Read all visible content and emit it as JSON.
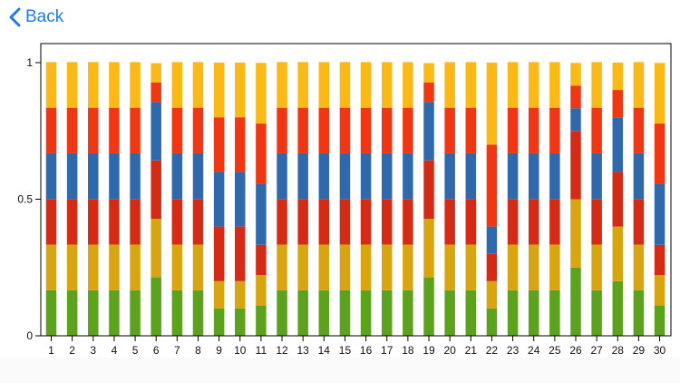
{
  "nav": {
    "back_label": "Back",
    "back_icon": "chevron-left-icon",
    "accent_color": "#1a7df3"
  },
  "chart_data": {
    "type": "bar",
    "stacked": true,
    "title": "",
    "xlabel": "",
    "ylabel": "",
    "ylim": [
      0,
      1
    ],
    "y_ticks": [
      {
        "value": 0,
        "label": "0"
      },
      {
        "value": 0.5,
        "label": "0.5"
      },
      {
        "value": 1,
        "label": "1"
      }
    ],
    "grid": false,
    "legend": "none",
    "categories": [
      "1",
      "2",
      "3",
      "4",
      "5",
      "6",
      "7",
      "8",
      "9",
      "10",
      "11",
      "12",
      "13",
      "14",
      "15",
      "16",
      "17",
      "18",
      "19",
      "20",
      "21",
      "22",
      "23",
      "24",
      "25",
      "26",
      "27",
      "28",
      "29",
      "30"
    ],
    "series": [
      {
        "color": "#5ba31a",
        "values": [
          0.167,
          0.167,
          0.167,
          0.167,
          0.167,
          0.214,
          0.167,
          0.167,
          0.1,
          0.1,
          0.111,
          0.167,
          0.167,
          0.167,
          0.167,
          0.167,
          0.167,
          0.167,
          0.214,
          0.167,
          0.167,
          0.1,
          0.167,
          0.167,
          0.167,
          0.25,
          0.167,
          0.2,
          0.167,
          0.111
        ]
      },
      {
        "color": "#d9a50f",
        "values": [
          0.167,
          0.167,
          0.167,
          0.167,
          0.167,
          0.214,
          0.167,
          0.167,
          0.1,
          0.1,
          0.111,
          0.167,
          0.167,
          0.167,
          0.167,
          0.167,
          0.167,
          0.167,
          0.214,
          0.167,
          0.167,
          0.1,
          0.167,
          0.167,
          0.167,
          0.25,
          0.167,
          0.2,
          0.167,
          0.111
        ]
      },
      {
        "color": "#d62a14",
        "values": [
          0.167,
          0.167,
          0.167,
          0.167,
          0.167,
          0.214,
          0.167,
          0.167,
          0.2,
          0.2,
          0.111,
          0.167,
          0.167,
          0.167,
          0.167,
          0.167,
          0.167,
          0.167,
          0.214,
          0.167,
          0.167,
          0.1,
          0.167,
          0.167,
          0.167,
          0.25,
          0.167,
          0.2,
          0.167,
          0.111
        ]
      },
      {
        "color": "#2f69ad",
        "values": [
          0.167,
          0.167,
          0.167,
          0.167,
          0.167,
          0.214,
          0.167,
          0.167,
          0.2,
          0.2,
          0.222,
          0.167,
          0.167,
          0.167,
          0.167,
          0.167,
          0.167,
          0.167,
          0.214,
          0.167,
          0.167,
          0.1,
          0.167,
          0.167,
          0.167,
          0.083,
          0.167,
          0.2,
          0.167,
          0.222
        ]
      },
      {
        "color": "#f23612",
        "values": [
          0.167,
          0.167,
          0.167,
          0.167,
          0.167,
          0.071,
          0.167,
          0.167,
          0.2,
          0.2,
          0.222,
          0.167,
          0.167,
          0.167,
          0.167,
          0.167,
          0.167,
          0.167,
          0.071,
          0.167,
          0.167,
          0.3,
          0.167,
          0.167,
          0.167,
          0.083,
          0.167,
          0.1,
          0.167,
          0.222
        ]
      },
      {
        "color": "#fdb913",
        "values": [
          0.167,
          0.167,
          0.167,
          0.167,
          0.167,
          0.071,
          0.167,
          0.167,
          0.2,
          0.2,
          0.222,
          0.167,
          0.167,
          0.167,
          0.167,
          0.167,
          0.167,
          0.167,
          0.071,
          0.167,
          0.167,
          0.3,
          0.167,
          0.167,
          0.167,
          0.083,
          0.167,
          0.1,
          0.167,
          0.222
        ]
      }
    ]
  }
}
